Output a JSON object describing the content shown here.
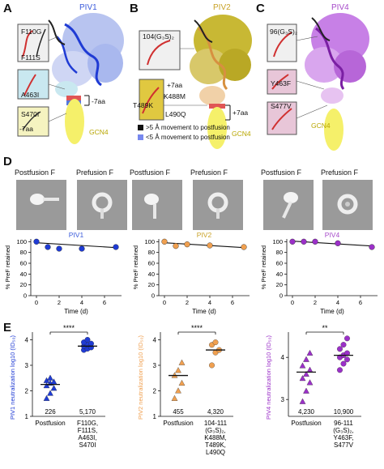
{
  "panels": {
    "A": {
      "letter": "A",
      "title": "PIV1",
      "title_color": "#3b5bdb",
      "mutations": [
        "F110G",
        "F111S",
        "A463I",
        "S470I"
      ],
      "gcn4": "GCN4",
      "seven_aa": "-7aa",
      "seven_aa2": "-7aa"
    },
    "B": {
      "letter": "B",
      "title": "PIV2",
      "title_color": "#c9a227",
      "insert": "104(G₃S)₂",
      "mutations": [
        "T489K",
        "K488M",
        "L490Q"
      ],
      "seven_aa": "+7aa",
      "seven_aa2": "+7aa",
      "gcn4": "GCN4"
    },
    "C": {
      "letter": "C",
      "title": "PIV4",
      "title_color": "#a64ac9",
      "insert": "96(G₃S)₂",
      "mutations": [
        "Y463F",
        "S477V"
      ],
      "gcn4": "GCN4"
    }
  },
  "legend": {
    "item1": ">5 Å movement to postfusion",
    "item2": "<5 Å movement to postfusion"
  },
  "panel_D": {
    "letter": "D",
    "em_labels": [
      "Postfusion F",
      "Prefusion F",
      "Postfusion F",
      "Prefusion F",
      "Postfusion F",
      "Prefusion F"
    ]
  },
  "panel_E": {
    "letter": "E"
  },
  "colors": {
    "piv1": "#1f3bd4",
    "piv2": "#f0a050",
    "piv4": "#9b30c8"
  },
  "chart_data": [
    {
      "type": "line",
      "title": "PIV1",
      "xlabel": "Time (d)",
      "ylabel": "% PreF retained",
      "x": [
        0,
        1,
        2,
        4,
        7
      ],
      "values": [
        100,
        90,
        87,
        87,
        90
      ],
      "trend": [
        98,
        89
      ],
      "xlim": [
        -0.5,
        7.5
      ],
      "ylim": [
        0,
        105
      ],
      "xticks": [
        0,
        2,
        4,
        6
      ],
      "yticks": [
        0,
        20,
        40,
        60,
        80,
        100
      ]
    },
    {
      "type": "line",
      "title": "PIV2",
      "xlabel": "Time (d)",
      "ylabel": "% PreF retained",
      "x": [
        0,
        1,
        2,
        4,
        7
      ],
      "values": [
        100,
        92,
        95,
        93,
        90
      ],
      "trend": [
        98,
        89
      ],
      "xlim": [
        -0.5,
        7.5
      ],
      "ylim": [
        0,
        105
      ],
      "xticks": [
        0,
        2,
        4,
        6
      ],
      "yticks": [
        0,
        20,
        40,
        60,
        80,
        100
      ]
    },
    {
      "type": "line",
      "title": "PIV4",
      "xlabel": "Time (d)",
      "ylabel": "% PreF retained",
      "x": [
        0,
        1,
        2,
        4,
        7
      ],
      "values": [
        100,
        100,
        100,
        97,
        90
      ],
      "trend": [
        101,
        92
      ],
      "xlim": [
        -0.5,
        7.5
      ],
      "ylim": [
        0,
        105
      ],
      "xticks": [
        0,
        2,
        4,
        6
      ],
      "yticks": [
        0,
        20,
        40,
        60,
        80,
        100
      ]
    },
    {
      "type": "scatter",
      "ylabel": "PIV1 neutralization log10 (ID₅₀)",
      "ylim": [
        1,
        4.3
      ],
      "yticks": [
        1,
        2,
        3,
        4
      ],
      "significance": "****",
      "groups": [
        {
          "label": "Postfusion",
          "gmt": "226",
          "median": 2.25,
          "marker": "triangle",
          "values": [
            1.7,
            1.9,
            2.1,
            2.2,
            2.3,
            2.35,
            2.4,
            2.5
          ]
        },
        {
          "label": "F110G,\nF111S,\nA463I,\nS470I",
          "gmt": "5,170",
          "median": 3.75,
          "marker": "circle",
          "values": [
            3.6,
            3.65,
            3.7,
            3.75,
            3.8,
            3.85,
            3.9,
            4.0
          ]
        }
      ]
    },
    {
      "type": "scatter",
      "ylabel": "PIV2 neutralization log10 (ID₅₀)",
      "ylim": [
        1,
        4.3
      ],
      "yticks": [
        1,
        2,
        3,
        4
      ],
      "significance": "****",
      "groups": [
        {
          "label": "Postfusion",
          "gmt": "455",
          "median": 2.6,
          "marker": "triangle",
          "values": [
            1.7,
            2.0,
            2.3,
            2.6,
            2.8,
            3.1
          ]
        },
        {
          "label": "104-111\n(G₃S)₂,\nK488M,\nT489K,\nL490Q",
          "gmt": "4,320",
          "median": 3.6,
          "marker": "circle",
          "values": [
            3.0,
            3.5,
            3.6,
            3.8,
            3.9
          ]
        }
      ]
    },
    {
      "type": "scatter",
      "ylabel": "PIV4 neutralization log10 (ID₅₀)",
      "ylim": [
        2.6,
        4.6
      ],
      "yticks": [
        3,
        4
      ],
      "significance": "**",
      "groups": [
        {
          "label": "Postfusion",
          "gmt": "4,230",
          "median": 3.65,
          "marker": "triangle",
          "values": [
            2.95,
            3.2,
            3.4,
            3.5,
            3.6,
            3.7,
            3.8,
            3.95,
            4.1
          ]
        },
        {
          "label": "96-111\n(G₃S)₂,\nY463F,\nS477V",
          "gmt": "10,900",
          "median": 4.05,
          "marker": "circle",
          "values": [
            3.7,
            3.85,
            3.95,
            4.0,
            4.05,
            4.1,
            4.2,
            4.3,
            4.45
          ]
        }
      ]
    }
  ]
}
